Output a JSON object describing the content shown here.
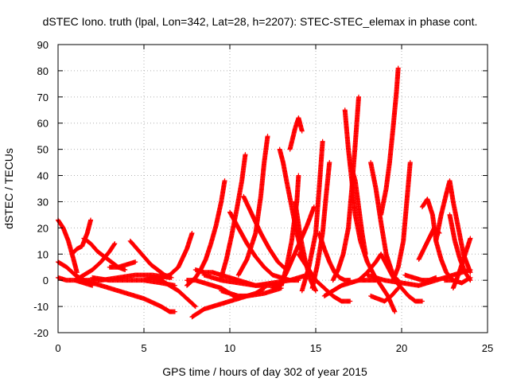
{
  "chart_data": {
    "type": "scatter",
    "title": "dSTEC Iono. truth (lpal, Lon=342, Lat=28, h=2207): STEC-STEC_elemax in phase cont.",
    "xlabel": "GPS time / hours of day 302 of year 2015",
    "ylabel": "dSTEC  / TECUs",
    "xlim": [
      0,
      25
    ],
    "ylim": [
      -20,
      90
    ],
    "xticks": [
      0,
      5,
      10,
      15,
      20,
      25
    ],
    "yticks": [
      -20,
      -10,
      0,
      10,
      20,
      30,
      40,
      50,
      60,
      70,
      80,
      90
    ],
    "grid": true,
    "marker": "+",
    "color": "#ff0000",
    "series": [
      {
        "x": [
          0.0,
          0.3,
          0.6,
          0.9,
          1.1
        ],
        "y": [
          23,
          20,
          15,
          8,
          3
        ]
      },
      {
        "x": [
          0.0,
          0.5,
          1.0,
          1.5,
          2.0,
          3.0,
          4.0,
          5.0,
          6.0,
          6.5,
          6.8
        ],
        "y": [
          7,
          5,
          2,
          0,
          -1,
          -3,
          -5,
          -7,
          -10,
          -12,
          -12
        ]
      },
      {
        "x": [
          0.0,
          0.5,
          1.0,
          1.5,
          2.0
        ],
        "y": [
          1,
          0,
          0,
          -1,
          -2
        ]
      },
      {
        "x": [
          0.8,
          1.1,
          1.4,
          1.7,
          1.9
        ],
        "y": [
          10,
          12,
          13,
          18,
          23
        ]
      },
      {
        "x": [
          1.5,
          1.9,
          2.3,
          2.7,
          3.1,
          3.5,
          3.9
        ],
        "y": [
          16,
          14,
          11,
          9,
          7,
          5,
          4
        ]
      },
      {
        "x": [
          1.0,
          1.5,
          2.0,
          2.5,
          3.0,
          3.3
        ],
        "y": [
          0,
          2,
          4,
          7,
          11,
          14
        ]
      },
      {
        "x": [
          1.5,
          2.5,
          3.5,
          4.5,
          5.5,
          6.5
        ],
        "y": [
          0,
          0,
          1,
          2,
          2,
          1
        ]
      },
      {
        "x": [
          2.0,
          3.0,
          4.0,
          5.0,
          6.0,
          6.8
        ],
        "y": [
          1,
          0,
          0,
          0,
          -1,
          -2
        ]
      },
      {
        "x": [
          3.0,
          3.5,
          4.0,
          4.5
        ],
        "y": [
          5,
          5,
          6,
          7
        ]
      },
      {
        "x": [
          4.2,
          4.6,
          5.0,
          5.4,
          5.8,
          6.2,
          6.6
        ],
        "y": [
          15,
          12,
          9,
          6,
          4,
          2,
          1
        ]
      },
      {
        "x": [
          5.0,
          5.5,
          6.0,
          6.5,
          7.0,
          7.5,
          8.0
        ],
        "y": [
          0,
          1,
          0,
          -2,
          -4,
          -7,
          -10
        ]
      },
      {
        "x": [
          5.5,
          6.0,
          6.5,
          7.0,
          7.5,
          7.8
        ],
        "y": [
          1,
          1,
          2,
          5,
          12,
          18
        ]
      },
      {
        "x": [
          7.5,
          8.0,
          8.5,
          9.0,
          9.5,
          10.0,
          10.5
        ],
        "y": [
          0,
          0,
          -1,
          -2,
          -3,
          -5,
          -7
        ]
      },
      {
        "x": [
          7.8,
          8.5,
          9.0,
          9.5,
          10.0,
          11.0,
          12.0,
          13.0
        ],
        "y": [
          -14,
          -11,
          -10,
          -9,
          -8,
          -6,
          -5,
          -3
        ]
      },
      {
        "x": [
          8.0,
          8.5,
          9.0,
          9.5,
          10.0,
          10.5,
          11.0,
          11.5,
          12.0,
          13.0
        ],
        "y": [
          4,
          3,
          3,
          2,
          1,
          0,
          -1,
          -2,
          -2,
          -2
        ]
      },
      {
        "x": [
          7.5,
          8.0,
          8.3,
          8.6,
          8.9,
          9.2,
          9.5,
          9.7
        ],
        "y": [
          -2,
          1,
          4,
          8,
          14,
          21,
          30,
          38
        ]
      },
      {
        "x": [
          8.5,
          9.5,
          10.5,
          11.5,
          12.5,
          13.5,
          14.5
        ],
        "y": [
          2,
          0,
          -1,
          -2,
          -1,
          0,
          2
        ]
      },
      {
        "x": [
          9.5,
          9.8,
          10.1,
          10.4,
          10.7,
          10.9
        ],
        "y": [
          1,
          8,
          17,
          27,
          38,
          48
        ]
      },
      {
        "x": [
          10.0,
          10.5,
          11.0,
          11.5,
          12.0,
          12.5,
          13.0,
          13.5,
          14.0
        ],
        "y": [
          26,
          20,
          14,
          9,
          5,
          2,
          1,
          0,
          0
        ]
      },
      {
        "x": [
          9.5,
          10.0,
          10.5,
          11.0,
          11.5,
          12.0
        ],
        "y": [
          -4,
          -5,
          -6,
          -6,
          -5,
          -3
        ]
      },
      {
        "x": [
          10.5,
          11.0,
          11.5,
          11.8,
          12.0,
          12.2
        ],
        "y": [
          2,
          8,
          18,
          32,
          45,
          55
        ]
      },
      {
        "x": [
          10.8,
          11.3,
          11.8,
          12.3,
          12.8,
          13.3
        ],
        "y": [
          32,
          25,
          18,
          12,
          7,
          4
        ]
      },
      {
        "x": [
          12.5,
          12.9,
          13.3,
          13.7,
          14.1,
          14.5,
          14.9
        ],
        "y": [
          -3,
          -2,
          3,
          9,
          15,
          21,
          28
        ]
      },
      {
        "x": [
          12.9,
          13.1,
          13.3,
          13.6,
          13.9,
          14.2,
          14.6,
          15.0
        ],
        "y": [
          50,
          45,
          38,
          28,
          18,
          10,
          4,
          0
        ]
      },
      {
        "x": [
          13.0,
          13.3,
          13.6,
          13.9,
          14.0
        ],
        "y": [
          -2,
          5,
          15,
          30,
          40
        ]
      },
      {
        "x": [
          13.5,
          13.8,
          14.0,
          14.2
        ],
        "y": [
          50,
          58,
          62,
          57
        ]
      },
      {
        "x": [
          13.8,
          14.1,
          14.4,
          14.7,
          15.0
        ],
        "y": [
          30,
          17,
          7,
          0,
          -4
        ]
      },
      {
        "x": [
          14.0,
          14.5,
          15.0,
          15.5,
          16.0,
          16.5,
          17.0
        ],
        "y": [
          10,
          5,
          0,
          -3,
          -6,
          -8,
          -8
        ]
      },
      {
        "x": [
          14.2,
          14.6,
          15.0,
          15.2,
          15.4
        ],
        "y": [
          -4,
          5,
          18,
          35,
          53
        ]
      },
      {
        "x": [
          14.8,
          15.1,
          15.4,
          15.6,
          15.8
        ],
        "y": [
          -3,
          6,
          18,
          32,
          45
        ]
      },
      {
        "x": [
          15.2,
          15.5,
          15.8,
          16.1,
          16.4,
          16.7,
          17.0
        ],
        "y": [
          18,
          12,
          7,
          3,
          1,
          0,
          0
        ]
      },
      {
        "x": [
          15.5,
          16.0,
          16.5,
          17.0,
          17.5,
          18.0,
          18.5
        ],
        "y": [
          -6,
          -4,
          -2,
          -1,
          0,
          0,
          0
        ]
      },
      {
        "x": [
          16.0,
          16.3,
          16.6,
          16.9,
          17.1,
          17.3,
          17.5
        ],
        "y": [
          0,
          4,
          10,
          20,
          35,
          52,
          70
        ]
      },
      {
        "x": [
          16.7,
          16.9,
          17.1,
          17.3,
          17.6,
          18.0,
          18.4,
          18.8,
          19.2,
          19.6
        ],
        "y": [
          65,
          50,
          38,
          25,
          15,
          7,
          2,
          -2,
          -6,
          -12
        ]
      },
      {
        "x": [
          17.0,
          17.3,
          17.5,
          17.7,
          17.9
        ],
        "y": [
          45,
          38,
          28,
          18,
          10
        ]
      },
      {
        "x": [
          17.5,
          18.0,
          18.5,
          18.8,
          19.2,
          19.6,
          20.0,
          20.4,
          20.8,
          21.2
        ],
        "y": [
          0,
          3,
          7,
          10,
          5,
          0,
          -3,
          -6,
          -8,
          -8
        ]
      },
      {
        "x": [
          18.2,
          18.6,
          19.0,
          19.4,
          19.8
        ],
        "y": [
          -6,
          -7,
          -8,
          -6,
          -3
        ]
      },
      {
        "x": [
          18.2,
          18.5,
          18.8,
          19.1,
          19.4,
          19.6,
          19.8
        ],
        "y": [
          45,
          35,
          22,
          10,
          4,
          1,
          0
        ]
      },
      {
        "x": [
          18.8,
          19.1,
          19.3,
          19.5,
          19.7,
          19.8
        ],
        "y": [
          25,
          35,
          45,
          58,
          72,
          81
        ]
      },
      {
        "x": [
          19.5,
          19.8,
          20.1,
          20.3,
          20.5
        ],
        "y": [
          0,
          5,
          15,
          30,
          45
        ]
      },
      {
        "x": [
          18.0,
          19.0,
          20.0,
          21.0,
          22.0,
          23.0,
          24.0
        ],
        "y": [
          2,
          0,
          -1,
          -2,
          0,
          2,
          4
        ]
      },
      {
        "x": [
          20.2,
          20.7,
          21.2,
          21.6,
          22.0
        ],
        "y": [
          2,
          1,
          0,
          0,
          1
        ]
      },
      {
        "x": [
          21.2,
          21.5,
          21.8,
          22.0,
          22.3,
          22.6,
          23.0
        ],
        "y": [
          28,
          31,
          25,
          15,
          8,
          3,
          0
        ]
      },
      {
        "x": [
          21.0,
          21.3,
          21.6,
          21.9,
          22.2
        ],
        "y": [
          8,
          12,
          16,
          20,
          18
        ]
      },
      {
        "x": [
          22.0,
          22.3,
          22.6,
          22.8,
          23.0,
          23.3,
          23.6,
          24.0
        ],
        "y": [
          15,
          25,
          33,
          38,
          30,
          20,
          10,
          3
        ]
      },
      {
        "x": [
          22.8,
          23.1,
          23.4,
          23.7,
          24.0
        ],
        "y": [
          25,
          15,
          8,
          3,
          0
        ]
      },
      {
        "x": [
          23.0,
          23.3,
          23.6,
          23.9,
          24.0
        ],
        "y": [
          -3,
          2,
          8,
          14,
          16
        ]
      },
      {
        "x": [
          22.5,
          23.0,
          23.5,
          24.0
        ],
        "y": [
          0,
          0,
          -1,
          1
        ]
      }
    ]
  }
}
